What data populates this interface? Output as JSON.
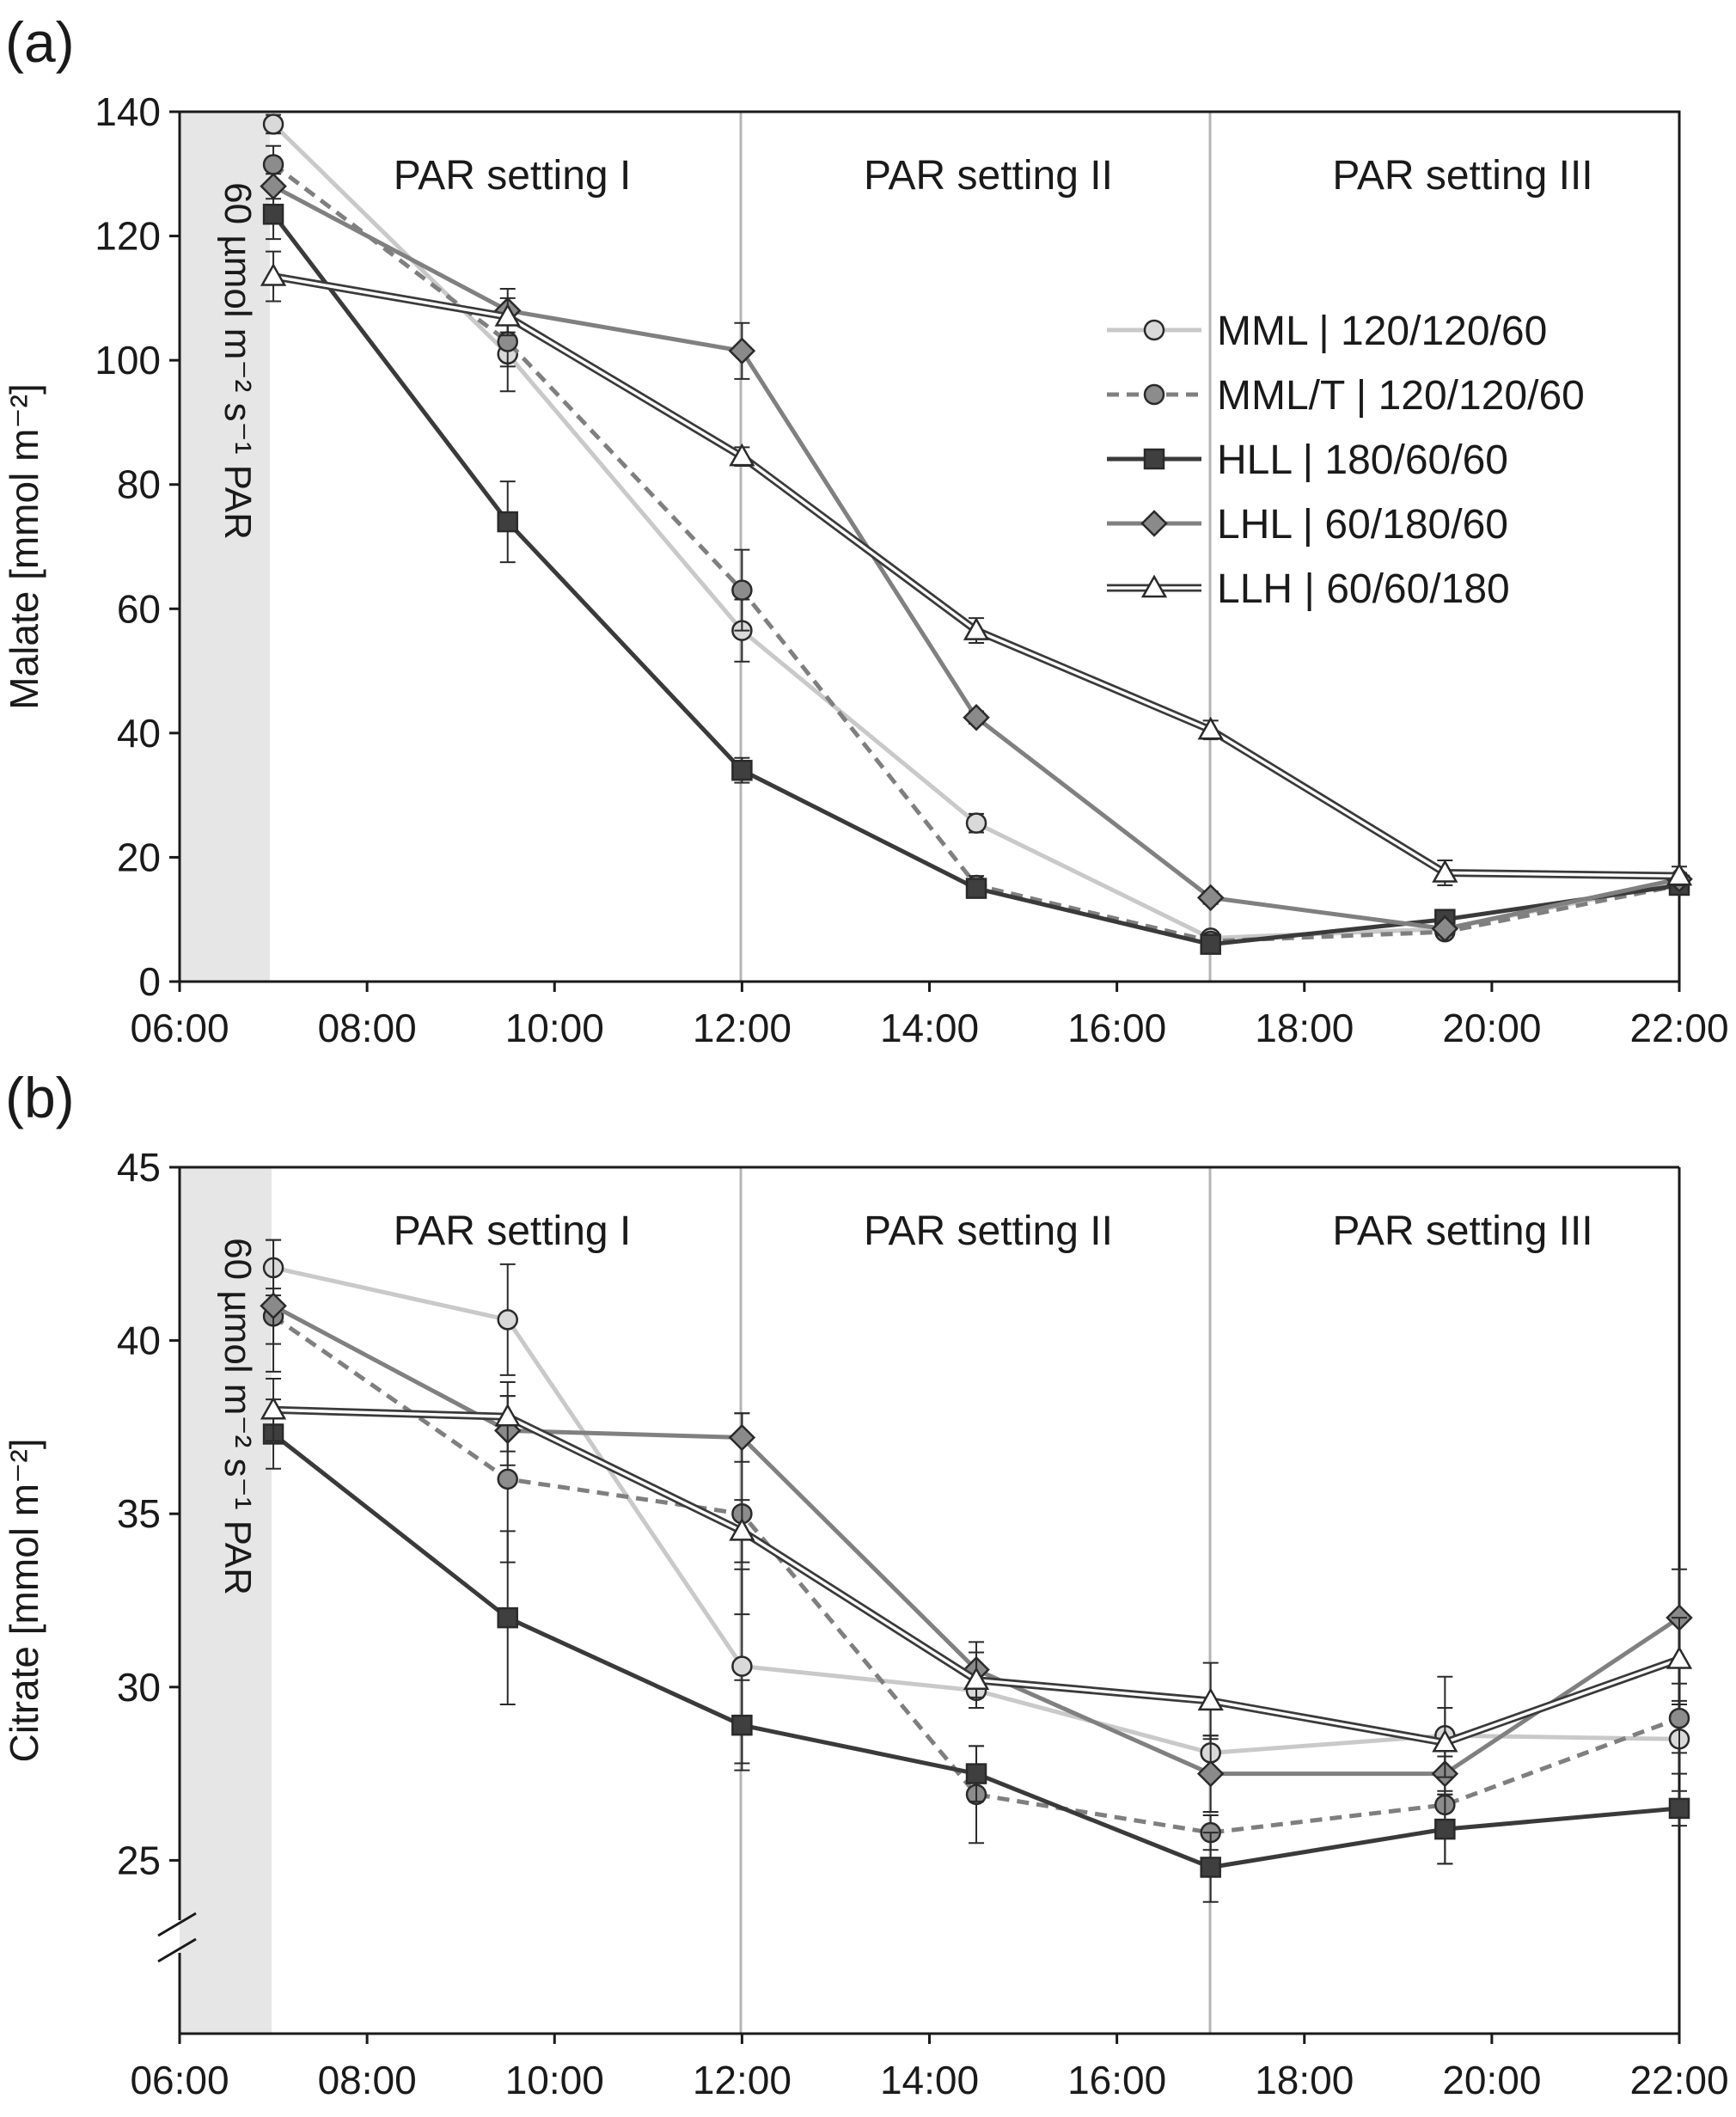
{
  "chart_data": [
    {
      "type": "line",
      "panel_label": "(a)",
      "ylabel": "Malate [mmol m⁻²]",
      "ylim": [
        0,
        140
      ],
      "yticks": [
        "0",
        "20",
        "40",
        "60",
        "80",
        "100",
        "120",
        "140"
      ],
      "xticks": [
        "06:00",
        "08:00",
        "10:00",
        "12:00",
        "14:00",
        "16:00",
        "18:00",
        "20:00",
        "22:00"
      ],
      "xlim": [
        6,
        22
      ],
      "x": [
        7,
        9.5,
        12,
        14.5,
        17,
        19.5,
        22
      ],
      "dark_period_label": "60 µmol m⁻² s⁻¹ PAR",
      "phase_labels": [
        "PAR setting I",
        "PAR setting II",
        "PAR setting III"
      ],
      "series": [
        {
          "name": "MML | 120/120/60",
          "values": [
            138,
            101,
            56.5,
            25.5,
            7,
            8.5,
            16
          ],
          "errors": [
            1.5,
            6,
            5,
            1.5,
            1,
            1,
            1
          ]
        },
        {
          "name": "MML/T | 120/120/60",
          "values": [
            131.5,
            103,
            63,
            15.5,
            6.5,
            8,
            15.5
          ],
          "errors": [
            3,
            4,
            6.5,
            1.5,
            1,
            1,
            1
          ]
        },
        {
          "name": "HLL | 180/60/60",
          "values": [
            123.5,
            74,
            34,
            15,
            6,
            10,
            15.5
          ],
          "errors": [
            4,
            6.5,
            2,
            1,
            1,
            1,
            1
          ]
        },
        {
          "name": "LHL | 60/180/60",
          "values": [
            128,
            108,
            101.5,
            42.5,
            13.5,
            8.5,
            16.5
          ],
          "errors": [
            2,
            3.5,
            4.5,
            1,
            1,
            1,
            1
          ]
        },
        {
          "name": "LLH | 60/60/180",
          "values": [
            113.5,
            107,
            84.5,
            56.5,
            40.5,
            17.5,
            17
          ],
          "errors": [
            4,
            3,
            1.5,
            2,
            1.5,
            2,
            1.5
          ]
        }
      ]
    },
    {
      "type": "line",
      "panel_label": "(b)",
      "ylabel": "Citrate [mmol m⁻²]",
      "ylim": [
        20,
        45
      ],
      "axis_break": true,
      "yticks": [
        "25",
        "30",
        "35",
        "40",
        "45"
      ],
      "xticks": [
        "06:00",
        "08:00",
        "10:00",
        "12:00",
        "14:00",
        "16:00",
        "18:00",
        "20:00",
        "22:00"
      ],
      "xlim": [
        6,
        22
      ],
      "x": [
        7,
        9.5,
        12,
        14.5,
        17,
        19.5,
        22
      ],
      "dark_period_label": "60 µmol m⁻² s⁻¹ PAR",
      "phase_labels": [
        "PAR setting I",
        "PAR setting II",
        "PAR setting III"
      ],
      "series": [
        {
          "name": "MML | 120/120/60",
          "values": [
            42.1,
            40.6,
            30.6,
            29.9,
            28.1,
            28.6,
            28.5
          ],
          "errors": [
            0.8,
            1.6,
            2.8,
            0.5,
            0.5,
            1.7,
            1
          ]
        },
        {
          "name": "MML/T | 120/120/60",
          "values": [
            40.7,
            36.0,
            35.0,
            26.9,
            25.8,
            26.6,
            29.1
          ],
          "errors": [
            0.8,
            2.4,
            2.9,
            1.4,
            0.5,
            1.7,
            1
          ]
        },
        {
          "name": "HLL | 180/60/60",
          "values": [
            37.3,
            32.0,
            28.9,
            27.5,
            24.8,
            25.9,
            26.5
          ],
          "errors": [
            1,
            2.5,
            1.3,
            0.8,
            1,
            1,
            0.5
          ]
        },
        {
          "name": "LHL | 60/180/60",
          "values": [
            41.0,
            37.4,
            37.2,
            30.5,
            27.5,
            27.5,
            32.0
          ],
          "errors": [
            1.9,
            1.0,
            0.7,
            0.8,
            1.1,
            0.5,
            1.4
          ]
        },
        {
          "name": "LLH | 60/60/180",
          "values": [
            38.0,
            37.8,
            34.5,
            30.2,
            29.6,
            28.4,
            30.8
          ],
          "errors": [
            0.9,
            1.0,
            0.9,
            0.8,
            1.1,
            1.0,
            1.2
          ]
        }
      ]
    }
  ],
  "legend": {
    "placement": "upper-right of panel (a)",
    "items": [
      "MML | 120/120/60",
      "MML/T | 120/120/60",
      "HLL | 180/60/60",
      "LHL | 60/180/60",
      "LLH | 60/60/180"
    ]
  },
  "styles": {
    "MML | 120/120/60": {
      "color": "#c9c9c9",
      "marker": "circle",
      "fill": "#d9d9d9",
      "dash": false,
      "double": false
    },
    "MML/T | 120/120/60": {
      "color": "#7f7f7f",
      "marker": "circle",
      "fill": "#8c8c8c",
      "dash": true,
      "double": false
    },
    "HLL | 180/60/60": {
      "color": "#3a3a3a",
      "marker": "square",
      "fill": "#3f3f3f",
      "dash": false,
      "double": false
    },
    "LHL | 60/180/60": {
      "color": "#808080",
      "marker": "diamond",
      "fill": "#8a8a8a",
      "dash": false,
      "double": false
    },
    "LLH | 60/60/180": {
      "color": "#3a3a3a",
      "marker": "triangle",
      "fill": "#ffffff",
      "dash": false,
      "double": true
    }
  },
  "shade_color": "#e6e6e6"
}
